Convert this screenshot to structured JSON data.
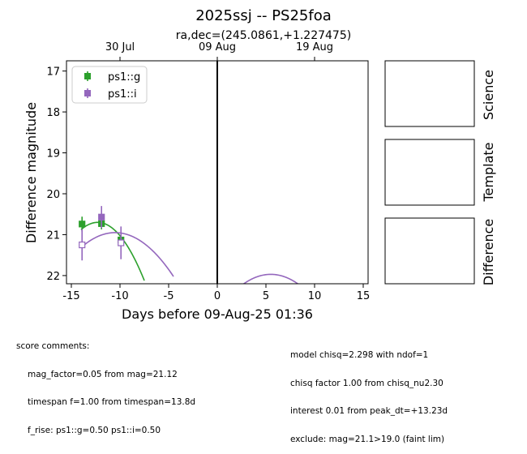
{
  "chart_data": {
    "type": "scatter",
    "title": "2025ssj -- PS25foa",
    "subtitle": "ra,dec=(245.0861,+1.227475)",
    "xlabel": "Days before 09-Aug-25 01:36",
    "ylabel": "Difference magnitude",
    "xlim": [
      -15.5,
      15.5
    ],
    "ylim": [
      22.2,
      16.75
    ],
    "y_inverted": true,
    "x_ticks": [
      "-15",
      "-10",
      "-5",
      "0",
      "5",
      "10",
      "15"
    ],
    "x_tick_values": [
      -15,
      -10,
      -5,
      0,
      5,
      10,
      15
    ],
    "y_ticks": [
      "17",
      "18",
      "19",
      "20",
      "21",
      "22"
    ],
    "y_tick_values": [
      17,
      18,
      19,
      20,
      21,
      22
    ],
    "top_axis_ticks": [
      "30 Jul",
      "09 Aug",
      "19 Aug"
    ],
    "top_axis_values": [
      -10,
      0,
      10
    ],
    "vline_x": 0,
    "legend_position": "top-left",
    "series": [
      {
        "name": "ps1::g",
        "color": "#2ca02c",
        "points": [
          {
            "x": -13.9,
            "y": 20.74,
            "err": 0.18,
            "filled": true
          },
          {
            "x": -11.9,
            "y": 20.73,
            "err": 0.14,
            "filled": true
          },
          {
            "x": -9.9,
            "y": 21.13,
            "err": 0.12,
            "filled": true
          }
        ],
        "model": {
          "x0": -12.3,
          "peak": 20.7,
          "curv": 0.0617,
          "x_from": -14,
          "x_to": -7.5
        }
      },
      {
        "name": "ps1::i",
        "color": "#9467bd",
        "points": [
          {
            "x": -13.9,
            "y": 21.25,
            "err": 0.38,
            "filled": false
          },
          {
            "x": -11.9,
            "y": 20.57,
            "err": 0.27,
            "filled": true
          },
          {
            "x": -9.9,
            "y": 21.2,
            "err": 0.4,
            "filled": false
          }
        ],
        "model_segments": [
          {
            "x0": -10.5,
            "peak": 20.95,
            "curv": 0.0298,
            "x_from": -14,
            "x_to": -4.5
          },
          {
            "x0": 5.5,
            "peak": 21.97,
            "curv": 0.03,
            "x_from": 2.5,
            "x_to": 8.5
          }
        ]
      }
    ]
  },
  "panels": {
    "science_label": "Science",
    "template_label": "Template",
    "difference_label": "Difference"
  },
  "comments": {
    "left_header": "score comments:",
    "left_lines": [
      "mag_factor=0.05 from mag=21.12",
      "timespan f=1.00 from timespan=13.8d",
      "f_rise: ps1::g=0.50 ps1::i=0.50"
    ],
    "right_lines": [
      "model chisq=2.298 with ndof=1",
      "chisq factor 1.00 from chisq_nu2.30",
      "interest 0.01 from peak_dt=+13.23d",
      "exclude: mag=21.1>19.0 (faint lim)"
    ]
  }
}
